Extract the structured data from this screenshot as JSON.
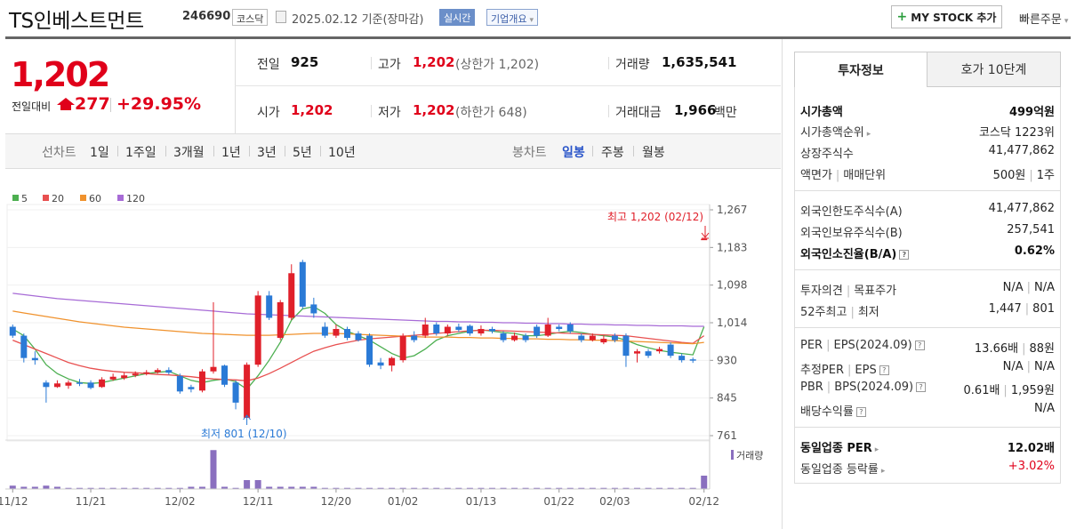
{
  "header": {
    "name": "TS인베스트먼트",
    "code": "246690",
    "market": "코스닥",
    "date": "2025.02.12 기준(장마감)",
    "realtime_label": "실시간",
    "company_label": "기업개요",
    "mystock_label": "MY STOCK 추가",
    "quick_order_label": "빠른주문"
  },
  "price": {
    "current": "1,202",
    "change_label": "전일대비",
    "change": "277",
    "change_pct": "+29.95%"
  },
  "stats": {
    "prev_label": "전일",
    "prev": "925",
    "high_label": "고가",
    "high": "1,202",
    "high_sub": "(상한가 1,202)",
    "volume_label": "거래량",
    "volume": "1,635,541",
    "open_label": "시가",
    "open": "1,202",
    "low_label": "저가",
    "low": "1,202",
    "low_sub": "(하한가 648)",
    "amount_label": "거래대금",
    "amount": "1,966",
    "amount_unit": "백만"
  },
  "period_bar": {
    "line_label": "선차트",
    "periods": [
      "1일",
      "1주일",
      "3개월",
      "1년",
      "3년",
      "5년",
      "10년"
    ],
    "candle_label": "봉차트",
    "candles": [
      "일봉",
      "주봉",
      "월봉"
    ],
    "selected_candle": "일봉"
  },
  "chart_data": {
    "type": "candlestick",
    "legend": [
      {
        "name": "5",
        "color": "#4caf50"
      },
      {
        "name": "20",
        "color": "#e85050"
      },
      {
        "name": "60",
        "color": "#f0922d"
      },
      {
        "name": "120",
        "color": "#a76bd6"
      }
    ],
    "y_ticks": [
      "1,267",
      "1,183",
      "1,098",
      "1,014",
      "930",
      "845",
      "761"
    ],
    "ylim": [
      761,
      1267
    ],
    "x_ticks": [
      "11/12",
      "11/21",
      "12/02",
      "12/11",
      "12/20",
      "01/02",
      "01/13",
      "01/22",
      "02/03",
      "02/12"
    ],
    "max_annotation": "최고 1,202 (02/12)",
    "min_annotation": "최저 801 (12/10)",
    "volume_label": "거래량",
    "up_color": "#e0202a",
    "down_color": "#2a7ad6",
    "candles": [
      {
        "o": 1005,
        "c": 985,
        "h": 1010,
        "l": 980
      },
      {
        "o": 985,
        "c": 935,
        "h": 990,
        "l": 925
      },
      {
        "o": 935,
        "c": 930,
        "h": 950,
        "l": 920
      },
      {
        "o": 880,
        "c": 870,
        "h": 885,
        "l": 835
      },
      {
        "o": 870,
        "c": 878,
        "h": 885,
        "l": 868
      },
      {
        "o": 873,
        "c": 880,
        "h": 885,
        "l": 866
      },
      {
        "o": 880,
        "c": 877,
        "h": 888,
        "l": 872
      },
      {
        "o": 880,
        "c": 868,
        "h": 885,
        "l": 865
      },
      {
        "o": 870,
        "c": 887,
        "h": 892,
        "l": 868
      },
      {
        "o": 887,
        "c": 893,
        "h": 900,
        "l": 884
      },
      {
        "o": 890,
        "c": 896,
        "h": 902,
        "l": 886
      },
      {
        "o": 896,
        "c": 900,
        "h": 905,
        "l": 892
      },
      {
        "o": 900,
        "c": 903,
        "h": 908,
        "l": 896
      },
      {
        "o": 903,
        "c": 908,
        "h": 912,
        "l": 900
      },
      {
        "o": 908,
        "c": 902,
        "h": 914,
        "l": 898
      },
      {
        "o": 895,
        "c": 860,
        "h": 900,
        "l": 855
      },
      {
        "o": 870,
        "c": 865,
        "h": 875,
        "l": 858
      },
      {
        "o": 862,
        "c": 905,
        "h": 910,
        "l": 858
      },
      {
        "o": 905,
        "c": 915,
        "h": 1060,
        "l": 900
      },
      {
        "o": 918,
        "c": 875,
        "h": 920,
        "l": 870
      },
      {
        "o": 880,
        "c": 835,
        "h": 885,
        "l": 820
      },
      {
        "o": 801,
        "c": 920,
        "h": 925,
        "l": 801
      },
      {
        "o": 920,
        "c": 1075,
        "h": 1085,
        "l": 915
      },
      {
        "o": 1075,
        "c": 1025,
        "h": 1085,
        "l": 1020
      },
      {
        "o": 980,
        "c": 1060,
        "h": 1065,
        "l": 975
      },
      {
        "o": 1025,
        "c": 1125,
        "h": 1145,
        "l": 1020
      },
      {
        "o": 1150,
        "c": 1050,
        "h": 1155,
        "l": 1045
      },
      {
        "o": 1055,
        "c": 1035,
        "h": 1070,
        "l": 1025
      },
      {
        "o": 1005,
        "c": 985,
        "h": 1015,
        "l": 980
      },
      {
        "o": 985,
        "c": 1000,
        "h": 1010,
        "l": 980
      },
      {
        "o": 1000,
        "c": 980,
        "h": 1005,
        "l": 975
      },
      {
        "o": 990,
        "c": 975,
        "h": 995,
        "l": 972
      },
      {
        "o": 985,
        "c": 920,
        "h": 990,
        "l": 915
      },
      {
        "o": 925,
        "c": 918,
        "h": 935,
        "l": 910
      },
      {
        "o": 918,
        "c": 935,
        "h": 938,
        "l": 905
      },
      {
        "o": 930,
        "c": 985,
        "h": 990,
        "l": 925
      },
      {
        "o": 985,
        "c": 975,
        "h": 995,
        "l": 970
      },
      {
        "o": 985,
        "c": 1010,
        "h": 1025,
        "l": 980
      },
      {
        "o": 1010,
        "c": 990,
        "h": 1015,
        "l": 985
      },
      {
        "o": 990,
        "c": 1005,
        "h": 1010,
        "l": 985
      },
      {
        "o": 1005,
        "c": 998,
        "h": 1012,
        "l": 993
      },
      {
        "o": 1007,
        "c": 990,
        "h": 1010,
        "l": 985
      },
      {
        "o": 990,
        "c": 1000,
        "h": 1008,
        "l": 985
      },
      {
        "o": 1000,
        "c": 995,
        "h": 1005,
        "l": 990
      },
      {
        "o": 990,
        "c": 975,
        "h": 995,
        "l": 970
      },
      {
        "o": 975,
        "c": 985,
        "h": 992,
        "l": 972
      },
      {
        "o": 985,
        "c": 975,
        "h": 990,
        "l": 970
      },
      {
        "o": 1005,
        "c": 985,
        "h": 1010,
        "l": 980
      },
      {
        "o": 985,
        "c": 1010,
        "h": 1025,
        "l": 982
      },
      {
        "o": 1005,
        "c": 1000,
        "h": 1010,
        "l": 995
      },
      {
        "o": 1010,
        "c": 995,
        "h": 1015,
        "l": 990
      },
      {
        "o": 985,
        "c": 975,
        "h": 990,
        "l": 970
      },
      {
        "o": 975,
        "c": 985,
        "h": 990,
        "l": 972
      },
      {
        "o": 970,
        "c": 978,
        "h": 985,
        "l": 966
      },
      {
        "o": 985,
        "c": 975,
        "h": 990,
        "l": 970
      },
      {
        "o": 985,
        "c": 940,
        "h": 990,
        "l": 915
      },
      {
        "o": 945,
        "c": 950,
        "h": 955,
        "l": 925
      },
      {
        "o": 950,
        "c": 940,
        "h": 955,
        "l": 935
      },
      {
        "o": 950,
        "c": 955,
        "h": 960,
        "l": 945
      },
      {
        "o": 965,
        "c": 940,
        "h": 970,
        "l": 935
      },
      {
        "o": 940,
        "c": 930,
        "h": 945,
        "l": 925
      },
      {
        "o": 932,
        "c": 930,
        "h": 936,
        "l": 924
      },
      {
        "o": 1202,
        "c": 1202,
        "h": 1202,
        "l": 1202
      }
    ],
    "ma5": [
      1000,
      985,
      955,
      920,
      900,
      888,
      880,
      878,
      880,
      885,
      890,
      895,
      900,
      903,
      905,
      895,
      885,
      880,
      885,
      888,
      882,
      865,
      895,
      930,
      970,
      1020,
      1045,
      1050,
      1035,
      1010,
      995,
      985,
      975,
      960,
      945,
      935,
      940,
      955,
      975,
      985,
      990,
      995,
      998,
      995,
      992,
      990,
      985,
      985,
      988,
      992,
      995,
      992,
      988,
      985,
      982,
      975,
      965,
      958,
      952,
      948,
      945,
      942,
      1005
    ],
    "ma20": [
      975,
      965,
      955,
      945,
      935,
      925,
      918,
      912,
      908,
      905,
      903,
      902,
      900,
      898,
      897,
      895,
      893,
      890,
      888,
      887,
      886,
      884,
      890,
      900,
      912,
      925,
      938,
      950,
      958,
      965,
      970,
      975,
      978,
      980,
      982,
      984,
      986,
      988,
      990,
      992,
      994,
      996,
      997,
      997,
      996,
      995,
      994,
      993,
      992,
      991,
      990,
      989,
      988,
      987,
      986,
      985,
      982,
      979,
      976,
      973,
      970,
      968,
      985
    ],
    "ma60": [
      1040,
      1036,
      1032,
      1028,
      1024,
      1020,
      1016,
      1013,
      1010,
      1007,
      1004,
      1002,
      1000,
      998,
      996,
      994,
      992,
      990,
      989,
      988,
      987,
      986,
      986,
      986,
      987,
      988,
      989,
      990,
      990,
      990,
      989,
      988,
      987,
      986,
      985,
      984,
      983,
      982,
      982,
      982,
      981,
      981,
      980,
      980,
      979,
      979,
      978,
      978,
      977,
      977,
      976,
      976,
      975,
      975,
      974,
      973,
      972,
      971,
      970,
      969,
      968,
      967,
      970
    ],
    "ma120": [
      1080,
      1077,
      1074,
      1071,
      1068,
      1066,
      1064,
      1062,
      1060,
      1058,
      1056,
      1054,
      1052,
      1050,
      1048,
      1046,
      1044,
      1042,
      1040,
      1038,
      1036,
      1034,
      1033,
      1032,
      1031,
      1030,
      1029,
      1028,
      1027,
      1026,
      1025,
      1024,
      1023,
      1022,
      1021,
      1020,
      1019,
      1018,
      1017,
      1017,
      1016,
      1016,
      1015,
      1015,
      1014,
      1014,
      1013,
      1013,
      1012,
      1012,
      1011,
      1011,
      1010,
      1010,
      1009,
      1009,
      1008,
      1008,
      1007,
      1007,
      1007,
      1006,
      1006
    ],
    "volumes": [
      3,
      2,
      2,
      3,
      2,
      1,
      1,
      1,
      1,
      1,
      1,
      1,
      1,
      1,
      1,
      1,
      2,
      2,
      3,
      2,
      1,
      2,
      2,
      2,
      2,
      2,
      2,
      2,
      1,
      1,
      1,
      1,
      1,
      1,
      1,
      1,
      1,
      1,
      1,
      1,
      1,
      1,
      1,
      1,
      1,
      1,
      1,
      1,
      1,
      1,
      1,
      1,
      1,
      1,
      1,
      1,
      1,
      1,
      1,
      1,
      1,
      1,
      1
    ],
    "volume_spikes": {
      "18": 35,
      "21": 8,
      "22": 8,
      "62": 12
    }
  },
  "invest_tabs": [
    "투자정보",
    "호가 10단계"
  ],
  "invest": {
    "market_cap_label": "시가총액",
    "market_cap": "499억원",
    "rank_label": "시가총액순위",
    "rank": "코스닥 1223위",
    "shares_label": "상장주식수",
    "shares": "41,477,862",
    "par_label": "액면가",
    "unit_label": "매매단위",
    "par": "500원",
    "unit": "1주",
    "foreign_limit_label": "외국인한도주식수(A)",
    "foreign_limit": "41,477,862",
    "foreign_hold_label": "외국인보유주식수(B)",
    "foreign_hold": "257,541",
    "foreign_ratio_label": "외국인소진율(B/A)",
    "foreign_ratio": "0.62%",
    "opinion_label": "투자의견",
    "target_label": "목표주가",
    "opinion": "N/A",
    "target": "N/A",
    "w52_high_label": "52주최고",
    "w52_low_label": "최저",
    "w52_high": "1,447",
    "w52_low": "801",
    "per_label": "PER",
    "eps_label": "EPS(2024.09)",
    "per": "13.66배",
    "eps": "88원",
    "est_per_label": "추정PER",
    "est_eps_label": "EPS",
    "est_per": "N/A",
    "est_eps": "N/A",
    "pbr_label": "PBR",
    "bps_label": "BPS(2024.09)",
    "pbr": "0.61배",
    "bps": "1,959원",
    "div_label": "배당수익률",
    "div": "N/A",
    "sector_per_label": "동일업종 PER",
    "sector_per": "12.02배",
    "sector_chg_label": "동일업종 등락률",
    "sector_chg": "+3.02%"
  }
}
